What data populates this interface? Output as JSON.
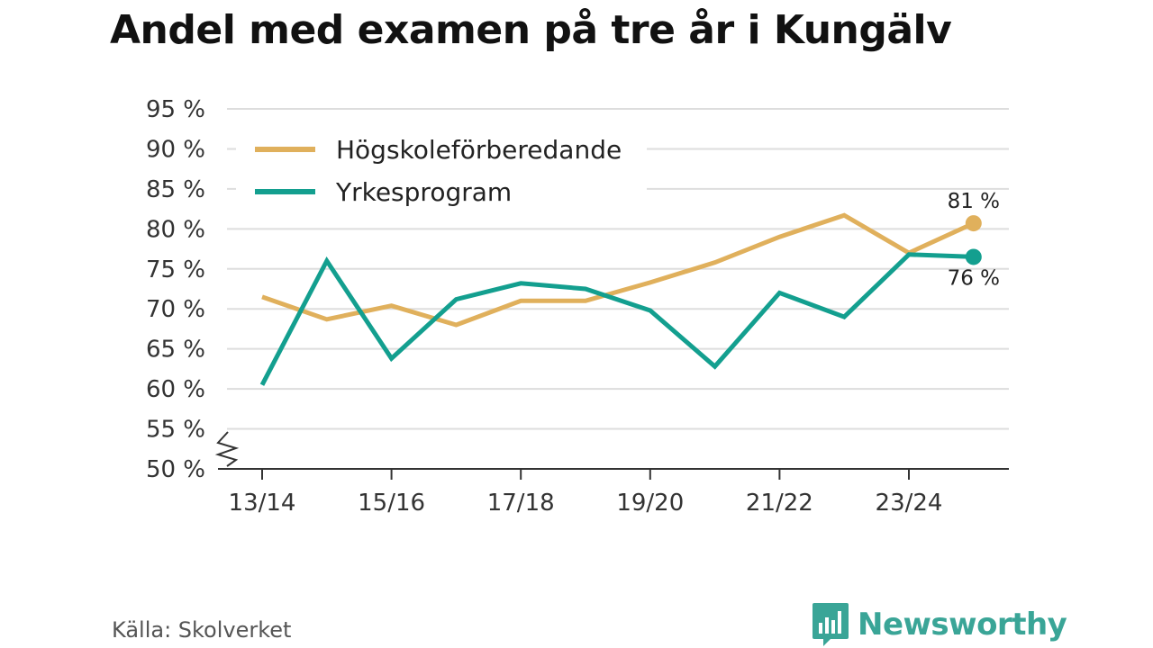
{
  "title": "Andel med examen på tre år i Kungälv",
  "source": "Källa: Skolverket",
  "logo": {
    "text": "Newsworthy",
    "icon": "bar-chart-speech-bubble-icon",
    "color": "#3aa597"
  },
  "chart_data": {
    "type": "line",
    "title": "Andel med examen på tre år i Kungälv",
    "xlabel": "",
    "ylabel": "",
    "x": [
      "13/14",
      "14/15",
      "15/16",
      "16/17",
      "17/18",
      "18/19",
      "19/20",
      "20/21",
      "21/22",
      "22/23",
      "23/24",
      "24/25"
    ],
    "x_tick_labels": [
      "13/14",
      "15/16",
      "17/18",
      "19/20",
      "21/22",
      "23/24"
    ],
    "y_ticks": [
      50,
      55,
      60,
      65,
      70,
      75,
      80,
      85,
      90,
      95
    ],
    "y_tick_labels": [
      "50 %",
      "55 %",
      "60 %",
      "65 %",
      "70 %",
      "75 %",
      "80 %",
      "85 %",
      "90 %",
      "95 %"
    ],
    "ylim": [
      50,
      95
    ],
    "y_axis_break": true,
    "grid": true,
    "legend": "top-left",
    "series": [
      {
        "name": "Högskoleförberedande",
        "color": "#e0b05c",
        "values": [
          71.5,
          68.7,
          70.4,
          68.0,
          71.0,
          71.0,
          73.3,
          75.8,
          79.0,
          81.7,
          77.0,
          80.7
        ],
        "end_label": "81 %"
      },
      {
        "name": "Yrkesprogram",
        "color": "#139f8f",
        "values": [
          60.5,
          76.0,
          63.8,
          71.2,
          73.2,
          72.5,
          69.8,
          62.8,
          72.0,
          69.0,
          76.8,
          76.5
        ],
        "end_label": "76 %"
      }
    ]
  }
}
